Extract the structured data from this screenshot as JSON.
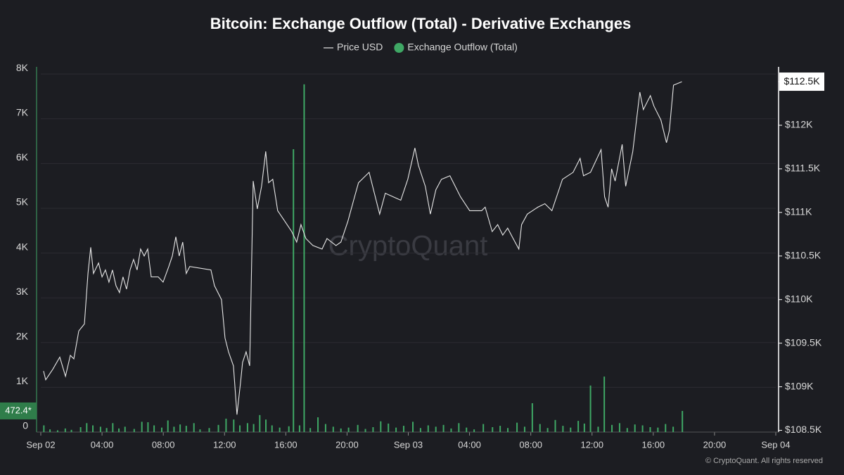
{
  "chart_data": {
    "type": "combo",
    "title": "Bitcoin: Exchange Outflow (Total) - Derivative Exchanges",
    "watermark": "CryptoQuant",
    "copyright": "© CryptoQuant. All rights reserved",
    "grid": true,
    "xlim": [
      0,
      48
    ],
    "xticks": [
      {
        "value": 0,
        "label": "Sep 02"
      },
      {
        "value": 4,
        "label": "04:00"
      },
      {
        "value": 8,
        "label": "08:00"
      },
      {
        "value": 12,
        "label": "12:00"
      },
      {
        "value": 16,
        "label": "16:00"
      },
      {
        "value": 20,
        "label": "20:00"
      },
      {
        "value": 24,
        "label": "Sep 03"
      },
      {
        "value": 28,
        "label": "04:00"
      },
      {
        "value": 32,
        "label": "08:00"
      },
      {
        "value": 36,
        "label": "12:00"
      },
      {
        "value": 40,
        "label": "16:00"
      },
      {
        "value": 44,
        "label": "20:00"
      },
      {
        "value": 48,
        "label": "Sep 04"
      }
    ],
    "ylim": [
      0,
      8160
    ],
    "yticks": [
      0,
      {
        "value": 1000,
        "label": "1K"
      },
      {
        "value": 2000,
        "label": "2K"
      },
      {
        "value": 3000,
        "label": "3K"
      },
      {
        "value": 4000,
        "label": "4K"
      },
      {
        "value": 5000,
        "label": "5K"
      },
      {
        "value": 6000,
        "label": "6K"
      },
      {
        "value": 7000,
        "label": "7K"
      },
      {
        "value": 8000,
        "label": "8K"
      }
    ],
    "y2lim": [
      108480,
      112670
    ],
    "y2ticks": [
      {
        "value": 108500,
        "label": "$108.5K"
      },
      {
        "value": 109000,
        "label": "$109K"
      },
      {
        "value": 109500,
        "label": "$109.5K"
      },
      {
        "value": 110000,
        "label": "$110K"
      },
      {
        "value": 110500,
        "label": "$110.5K"
      },
      {
        "value": 111000,
        "label": "$111K"
      },
      {
        "value": 111500,
        "label": "$111.5K"
      },
      {
        "value": 112000,
        "label": "$112K"
      },
      {
        "value": 112500,
        "label": "$112.5K"
      }
    ],
    "series": [
      {
        "name": "Price USD",
        "type": "line",
        "axis": "y2",
        "color": "#e8e8e8",
        "last_label": "$112.5K",
        "x": [
          0.18,
          0.32,
          0.78,
          1.24,
          1.61,
          1.93,
          2.16,
          2.48,
          2.85,
          3.08,
          3.26,
          3.44,
          3.77,
          4.0,
          4.22,
          4.45,
          4.68,
          4.91,
          5.14,
          5.37,
          5.6,
          5.83,
          6.06,
          6.29,
          6.52,
          6.75,
          6.98,
          7.21,
          7.67,
          7.99,
          8.36,
          8.59,
          8.82,
          9.04,
          9.27,
          9.5,
          9.73,
          11.11,
          11.34,
          11.8,
          12.03,
          12.26,
          12.58,
          12.81,
          13.04,
          13.18,
          13.41,
          13.64,
          13.87,
          14.14,
          14.42,
          14.69,
          14.88,
          15.15,
          15.47,
          15.93,
          16.39,
          16.71,
          16.99,
          17.31,
          17.77,
          18.37,
          18.69,
          19.28,
          19.6,
          20.06,
          20.43,
          20.75,
          21.44,
          21.67,
          22.13,
          22.5,
          23.51,
          23.97,
          24.43,
          24.66,
          25.11,
          25.44,
          25.8,
          26.17,
          26.72,
          27.41,
          28.01,
          28.79,
          29.02,
          29.48,
          29.84,
          30.17,
          30.49,
          30.85,
          31.22,
          31.4,
          31.77,
          32.46,
          32.92,
          33.38,
          34.07,
          34.76,
          35.22,
          35.44,
          35.9,
          36.59,
          36.82,
          37.05,
          37.28,
          37.51,
          37.97,
          38.2,
          38.66,
          39.12,
          39.35,
          39.81,
          40.04,
          40.5,
          40.86,
          41.05,
          41.32,
          41.87
        ],
        "values": [
          109180,
          109080,
          109200,
          109340,
          109120,
          109360,
          109320,
          109640,
          109720,
          110300,
          110600,
          110300,
          110420,
          110260,
          110340,
          110200,
          110340,
          110160,
          110080,
          110260,
          110120,
          110340,
          110460,
          110340,
          110580,
          110500,
          110580,
          110260,
          110260,
          110200,
          110380,
          110500,
          110720,
          110500,
          110660,
          110300,
          110380,
          110340,
          110160,
          110000,
          109560,
          109400,
          109240,
          108680,
          109040,
          109280,
          109400,
          109240,
          111360,
          111040,
          111300,
          111700,
          111340,
          111380,
          111020,
          110900,
          110780,
          110660,
          110860,
          110700,
          110620,
          110580,
          110700,
          110620,
          110660,
          110900,
          111140,
          111340,
          111460,
          111300,
          110980,
          111220,
          111140,
          111380,
          111740,
          111540,
          111300,
          110980,
          111260,
          111380,
          111420,
          111180,
          111020,
          111020,
          111060,
          110780,
          110860,
          110740,
          110820,
          110700,
          110580,
          110860,
          110980,
          111060,
          111100,
          111020,
          111380,
          111460,
          111620,
          111420,
          111460,
          111720,
          111180,
          111060,
          111500,
          111360,
          111780,
          111300,
          111700,
          112380,
          112180,
          112340,
          112220,
          112060,
          111800,
          111940,
          112460,
          112500
        ]
      },
      {
        "name": "Exchange Outflow (Total)",
        "type": "bar",
        "axis": "y",
        "color": "#3fa865",
        "last_label": "472.4*",
        "x": [
          0.2,
          0.6,
          1.1,
          1.6,
          2.0,
          2.6,
          3.0,
          3.4,
          3.9,
          4.3,
          4.7,
          5.1,
          5.5,
          6.1,
          6.6,
          7.0,
          7.4,
          7.9,
          8.3,
          8.7,
          9.1,
          9.5,
          10.0,
          10.4,
          11.0,
          11.6,
          12.1,
          12.6,
          13.0,
          13.5,
          13.9,
          14.3,
          14.7,
          15.1,
          15.6,
          16.2,
          16.5,
          16.9,
          17.2,
          17.6,
          18.1,
          18.6,
          19.1,
          19.6,
          20.1,
          20.7,
          21.2,
          21.7,
          22.2,
          22.7,
          23.2,
          23.7,
          24.3,
          24.8,
          25.3,
          25.8,
          26.3,
          26.8,
          27.3,
          27.8,
          28.3,
          28.9,
          29.5,
          30.0,
          30.5,
          31.1,
          31.6,
          32.1,
          32.6,
          33.1,
          33.6,
          34.1,
          34.6,
          35.1,
          35.5,
          35.9,
          36.4,
          36.8,
          37.3,
          37.8,
          38.3,
          38.8,
          39.3,
          39.8,
          40.3,
          40.8,
          41.3,
          41.9
        ],
        "values": [
          150,
          60,
          40,
          80,
          50,
          110,
          200,
          150,
          120,
          90,
          200,
          80,
          120,
          70,
          230,
          220,
          150,
          100,
          260,
          120,
          170,
          140,
          200,
          60,
          90,
          160,
          300,
          280,
          150,
          200,
          180,
          380,
          280,
          150,
          100,
          130,
          6320,
          150,
          7770,
          90,
          330,
          180,
          120,
          80,
          100,
          160,
          70,
          110,
          240,
          190,
          100,
          140,
          230,
          90,
          150,
          120,
          160,
          80,
          200,
          100,
          60,
          180,
          110,
          140,
          90,
          210,
          120,
          645,
          180,
          90,
          270,
          140,
          100,
          250,
          190,
          1040,
          120,
          1240,
          160,
          200,
          90,
          170,
          150,
          110,
          100,
          180,
          120,
          472.4
        ]
      }
    ]
  }
}
